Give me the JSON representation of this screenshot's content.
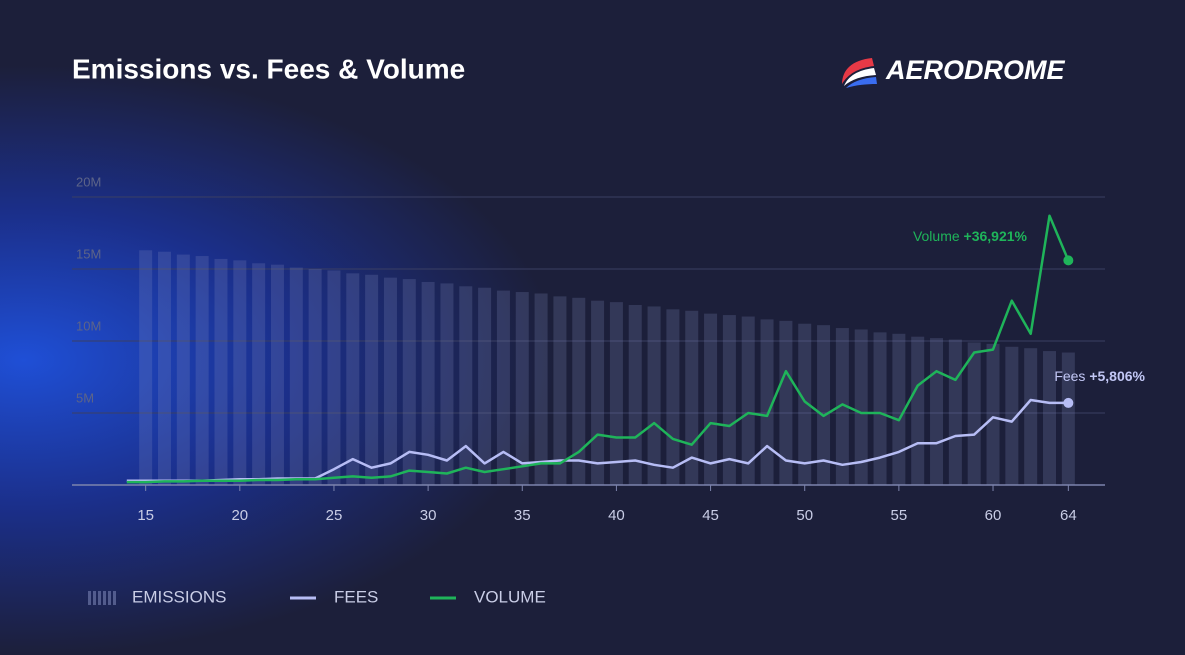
{
  "chart_data": {
    "type": "bar-line",
    "title": "Emissions vs. Fees & Volume",
    "brand": "AERODROME",
    "x": [
      14,
      15,
      16,
      17,
      18,
      19,
      20,
      21,
      22,
      23,
      24,
      25,
      26,
      27,
      28,
      29,
      30,
      31,
      32,
      33,
      34,
      35,
      36,
      37,
      38,
      39,
      40,
      41,
      42,
      43,
      44,
      45,
      46,
      47,
      48,
      49,
      50,
      51,
      52,
      53,
      54,
      55,
      56,
      57,
      58,
      59,
      60,
      61,
      62,
      63,
      64
    ],
    "xlim": [
      13,
      66
    ],
    "xticks": [
      15,
      20,
      25,
      30,
      35,
      40,
      45,
      50,
      55,
      60,
      64
    ],
    "ylim": [
      0,
      20000000
    ],
    "yticks": [
      {
        "value": 5000000,
        "label": "5M"
      },
      {
        "value": 10000000,
        "label": "10M"
      },
      {
        "value": 15000000,
        "label": "15M"
      },
      {
        "value": 20000000,
        "label": "20M"
      }
    ],
    "grid": true,
    "series": [
      {
        "name": "EMISSIONS",
        "kind": "bar",
        "color": "#8a93c4",
        "values": [
          null,
          16300000,
          16200000,
          16000000,
          15900000,
          15700000,
          15600000,
          15400000,
          15300000,
          15100000,
          15000000,
          14900000,
          14700000,
          14600000,
          14400000,
          14300000,
          14100000,
          14000000,
          13800000,
          13700000,
          13500000,
          13400000,
          13300000,
          13100000,
          13000000,
          12800000,
          12700000,
          12500000,
          12400000,
          12200000,
          12100000,
          11900000,
          11800000,
          11700000,
          11500000,
          11400000,
          11200000,
          11100000,
          10900000,
          10800000,
          10600000,
          10500000,
          10300000,
          10200000,
          10100000,
          9900000,
          9800000,
          9600000,
          9500000,
          9300000,
          9200000
        ]
      },
      {
        "name": "FEES",
        "kind": "line",
        "color": "#b7bdf5",
        "values": [
          300000,
          300000,
          300000,
          300000,
          300000,
          350000,
          400000,
          400000,
          450000,
          450000,
          450000,
          1100000,
          1800000,
          1200000,
          1500000,
          2300000,
          2100000,
          1700000,
          2700000,
          1500000,
          2300000,
          1500000,
          1600000,
          1700000,
          1700000,
          1500000,
          1600000,
          1700000,
          1400000,
          1200000,
          1900000,
          1500000,
          1800000,
          1500000,
          2700000,
          1700000,
          1500000,
          1700000,
          1400000,
          1600000,
          1900000,
          2300000,
          2900000,
          2900000,
          3400000,
          3500000,
          4700000,
          4400000,
          5900000,
          5700000,
          5700000
        ]
      },
      {
        "name": "VOLUME",
        "kind": "line",
        "color": "#1fb45a",
        "values": [
          200000,
          200000,
          250000,
          250000,
          300000,
          300000,
          300000,
          350000,
          350000,
          400000,
          400000,
          500000,
          600000,
          500000,
          600000,
          1000000,
          900000,
          800000,
          1200000,
          900000,
          1100000,
          1300000,
          1500000,
          1500000,
          2300000,
          3500000,
          3300000,
          3300000,
          4300000,
          3200000,
          2800000,
          4300000,
          4100000,
          5000000,
          4800000,
          7900000,
          5800000,
          4800000,
          5600000,
          5000000,
          5000000,
          4500000,
          6900000,
          7900000,
          7300000,
          9200000,
          9400000,
          12800000,
          10500000,
          18700000,
          15600000
        ]
      }
    ],
    "annotations": [
      {
        "text": "Volume",
        "value": "+36,921%"
      },
      {
        "text": "Fees",
        "value": "+5,806%"
      }
    ]
  }
}
